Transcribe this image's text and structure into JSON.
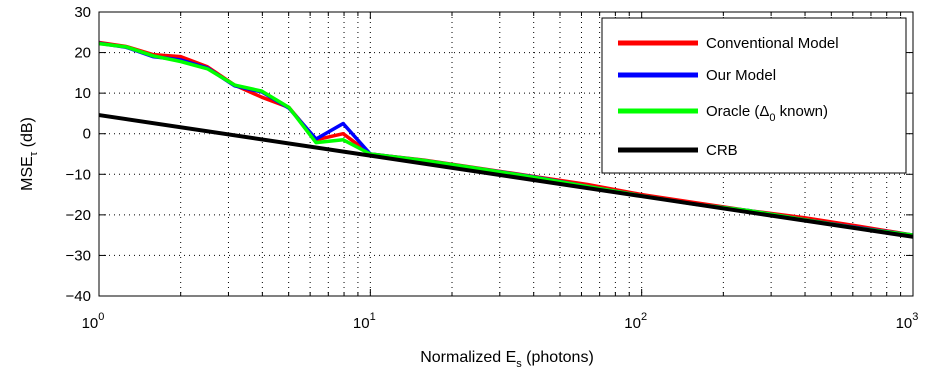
{
  "chart_data": {
    "type": "line",
    "xscale": "log",
    "xlim": [
      1,
      1000
    ],
    "ylim": [
      -40,
      30
    ],
    "grid": true,
    "legend_position": "top-right",
    "x_ticks": [
      {
        "value": 1,
        "base": "10",
        "exp": "0"
      },
      {
        "value": 10,
        "base": "10",
        "exp": "1"
      },
      {
        "value": 100,
        "base": "10",
        "exp": "2"
      },
      {
        "value": 1000,
        "base": "10",
        "exp": "3"
      }
    ],
    "y_ticks": [
      {
        "value": 30,
        "label": "30"
      },
      {
        "value": 20,
        "label": "20"
      },
      {
        "value": 10,
        "label": "10"
      },
      {
        "value": 0,
        "label": "0"
      },
      {
        "value": -10,
        "label": "−10"
      },
      {
        "value": -20,
        "label": "−20"
      },
      {
        "value": -30,
        "label": "−30"
      },
      {
        "value": -40,
        "label": "−40"
      }
    ],
    "xlabel": {
      "main": "Normalized E",
      "sub": "s",
      "suffix": " (photons)"
    },
    "ylabel": {
      "main": "MSE",
      "sub": "τ",
      "suffix": " (dB)"
    },
    "series": [
      {
        "name": "Conventional Model",
        "color": "#ff0000",
        "points": [
          [
            1,
            22.5
          ],
          [
            1.26,
            21.5
          ],
          [
            1.58,
            19.5
          ],
          [
            2,
            19
          ],
          [
            2.51,
            16.5
          ],
          [
            3.16,
            12
          ],
          [
            3.98,
            9
          ],
          [
            5.01,
            6.5
          ],
          [
            6.31,
            -1.5
          ],
          [
            7.94,
            0
          ],
          [
            10,
            -5
          ],
          [
            15.8,
            -6.5
          ],
          [
            25.1,
            -8.5
          ],
          [
            39.8,
            -10.5
          ],
          [
            63.1,
            -12.5
          ],
          [
            100,
            -15
          ],
          [
            158,
            -17
          ],
          [
            251,
            -19
          ],
          [
            398,
            -20.7
          ],
          [
            631,
            -22.8
          ],
          [
            1000,
            -25
          ]
        ]
      },
      {
        "name": "Our Model",
        "color": "#0000ff",
        "points": [
          [
            1,
            22.3
          ],
          [
            1.26,
            21.3
          ],
          [
            1.58,
            19
          ],
          [
            2,
            18.2
          ],
          [
            2.51,
            16.2
          ],
          [
            3.16,
            11.8
          ],
          [
            3.98,
            10.3
          ],
          [
            5.01,
            6.3
          ],
          [
            6.31,
            -1.3
          ],
          [
            7.94,
            2.5
          ],
          [
            10,
            -5
          ],
          [
            15.8,
            -6.6
          ],
          [
            25.1,
            -8.6
          ],
          [
            39.8,
            -10.6
          ],
          [
            63.1,
            -13
          ],
          [
            100,
            -15.3
          ],
          [
            158,
            -17.4
          ],
          [
            251,
            -19
          ],
          [
            398,
            -21.2
          ],
          [
            631,
            -23.2
          ],
          [
            1000,
            -25
          ]
        ]
      },
      {
        "name": "Oracle",
        "sub": "0",
        "color": "#00ff00",
        "label_parts": [
          "Oracle (Δ",
          "0",
          " known)"
        ],
        "points": [
          [
            1,
            22.2
          ],
          [
            1.26,
            21.4
          ],
          [
            1.58,
            19.2
          ],
          [
            2,
            17.8
          ],
          [
            2.51,
            16
          ],
          [
            3.16,
            12
          ],
          [
            3.98,
            10.5
          ],
          [
            5.01,
            6.5
          ],
          [
            6.31,
            -2.2
          ],
          [
            7.94,
            -1.5
          ],
          [
            10,
            -5
          ],
          [
            15.8,
            -6.6
          ],
          [
            25.1,
            -8.6
          ],
          [
            39.8,
            -10.7
          ],
          [
            63.1,
            -13
          ],
          [
            100,
            -15.3
          ],
          [
            158,
            -17.4
          ],
          [
            251,
            -19
          ],
          [
            398,
            -21.2
          ],
          [
            631,
            -23.3
          ],
          [
            1000,
            -25
          ]
        ]
      },
      {
        "name": "CRB",
        "color": "#000000",
        "points": [
          [
            1,
            4.6
          ],
          [
            10,
            -5.4
          ],
          [
            100,
            -15.4
          ],
          [
            1000,
            -25.4
          ]
        ]
      }
    ]
  }
}
